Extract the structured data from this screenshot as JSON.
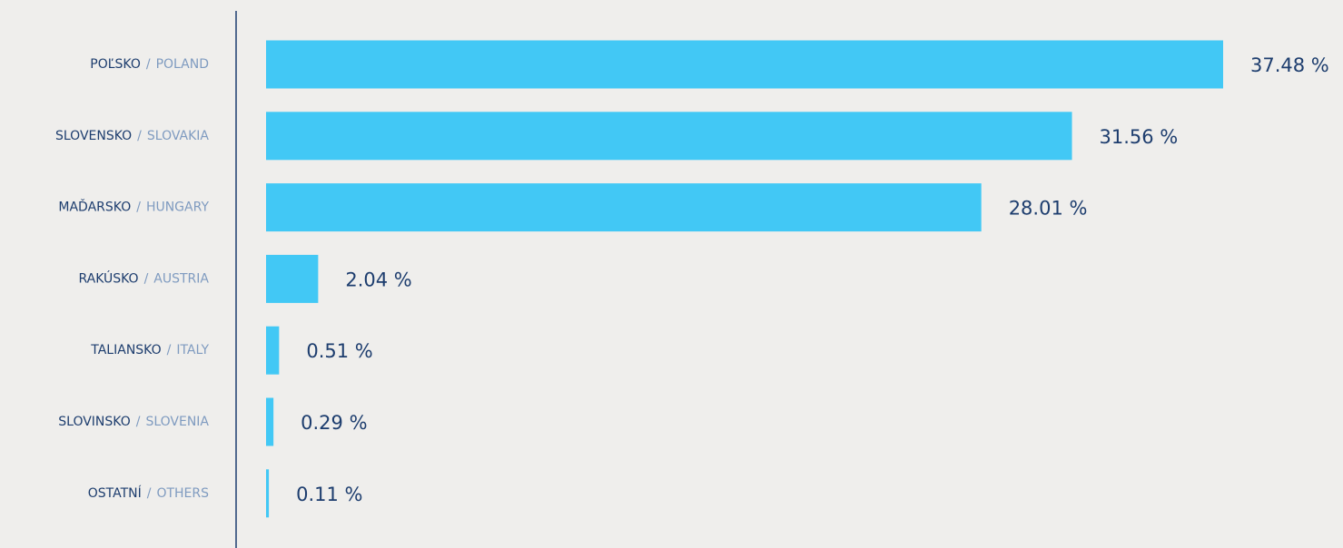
{
  "chart_data": {
    "type": "bar",
    "orientation": "horizontal",
    "categories": [
      "POĽSKO",
      "SLOVENSKO",
      "MAĎARSKO",
      "RAKÚSKO",
      "TALIANSKO",
      "SLOVINSKO",
      "OSTATNÍ"
    ],
    "categories_en": [
      "POLAND",
      "SLOVAKIA",
      "HUNGARY",
      "AUSTRIA",
      "ITALY",
      "SLOVENIA",
      "OTHERS"
    ],
    "separator": "/",
    "values": [
      37.48,
      31.56,
      28.01,
      2.04,
      0.51,
      0.29,
      0.11
    ],
    "value_labels": [
      "37.48 %",
      "31.56 %",
      "28.01 %",
      "2.04 %",
      "0.51 %",
      "0.29 %",
      "0.11 %"
    ],
    "color": "#42c8f5",
    "xlim": [
      0,
      37.48
    ]
  }
}
